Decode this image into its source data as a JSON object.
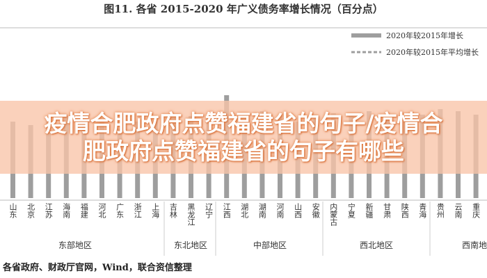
{
  "chart_data": {
    "type": "bar",
    "title": "图11.   各省 2015-2020 年广义债务率增长情况（百分点）",
    "categories": [
      "山东",
      "北京",
      "江苏",
      "海南",
      "福建",
      "河北",
      "广东",
      "浙江",
      "上海",
      "吉林",
      "黑龙江",
      "辽宁",
      "江西",
      "湖北",
      "湖南",
      "河南",
      "山西",
      "安徽",
      "内蒙古",
      "宁夏",
      "新疆",
      "甘肃",
      "陕西",
      "青海",
      "贵州",
      "云南",
      "重庆"
    ],
    "series": [
      {
        "name": "2020年较2015年增长",
        "color": "#9e9e9e",
        "values": [
          110,
          105,
          112,
          118,
          108,
          115,
          100,
          110,
          112,
          120,
          118,
          115,
          148,
          120,
          125,
          118,
          110,
          115,
          122,
          120,
          125,
          118,
          115,
          120,
          128,
          125,
          120
        ]
      },
      {
        "name": "2020年较2015年平均增长",
        "color": "#9e9e9e",
        "dash": true
      }
    ],
    "groups": [
      "东部地区",
      "东北地区",
      "中部地区",
      "西北地区",
      "西南地"
    ],
    "ylim": [
      0,
      150
    ],
    "banner": "疫情合肥政府点赞福建省的句子/疫情合肥政府点赞福建省的句子有哪些",
    "source": "各省政府、财政厅官网，Wind，联合资信整理"
  }
}
